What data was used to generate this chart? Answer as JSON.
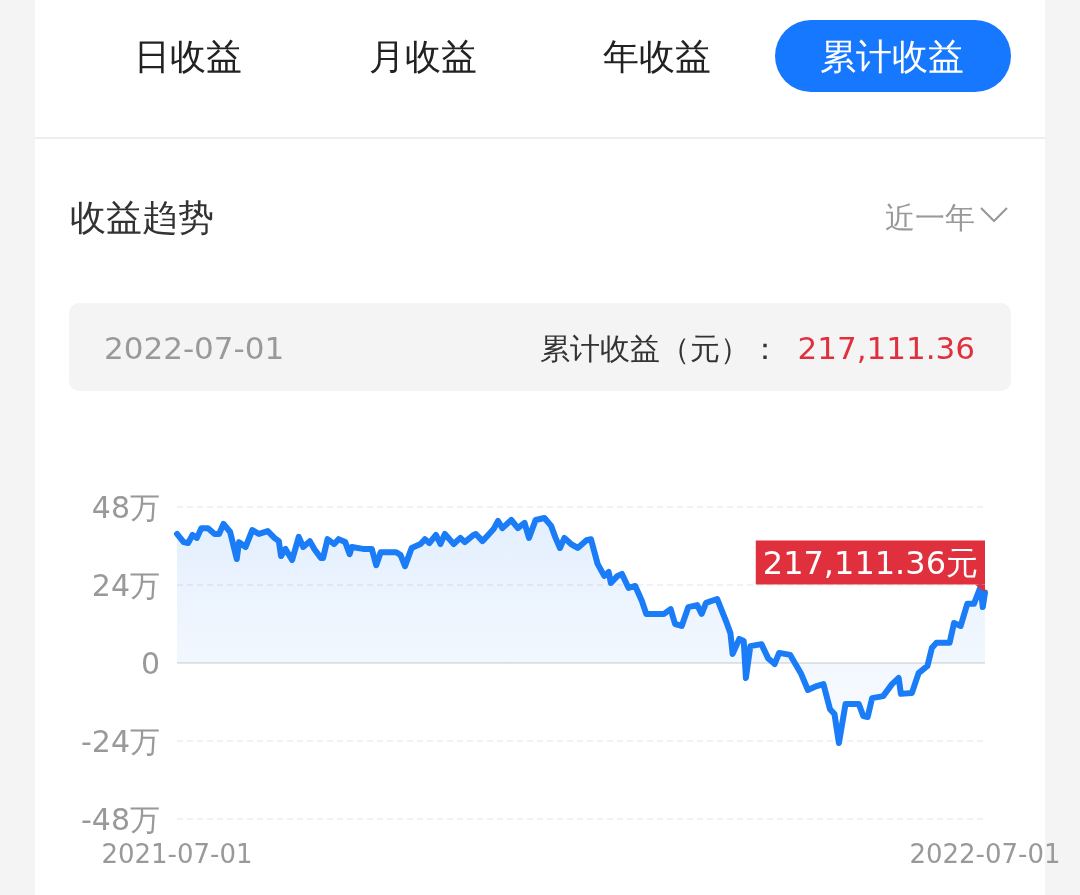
{
  "chart_data": {
    "type": "area",
    "title": "收益趋势",
    "annotations": [
      "日收益",
      "月收益",
      "年收益",
      "累计收益",
      "近一年",
      "2022-07-01",
      "累计收益（元）：",
      "217,111.36",
      {
        "text": "217,111.36元",
        "x": "2022-07-01",
        "y": 21.7
      }
    ],
    "x": [
      "2021-07-01",
      "2021-07-04",
      "2021-07-06",
      "2021-07-08",
      "2021-07-10",
      "2021-07-12",
      "2021-07-15",
      "2021-07-18",
      "2021-07-20",
      "2021-07-22",
      "2021-07-25",
      "2021-07-28",
      "2021-07-29",
      "2021-08-01",
      "2021-08-04",
      "2021-08-07",
      "2021-08-11",
      "2021-08-14",
      "2021-08-16",
      "2021-08-17",
      "2021-08-19",
      "2021-08-22",
      "2021-08-25",
      "2021-08-27",
      "2021-08-30",
      "2021-09-01",
      "2021-09-04",
      "2021-09-05",
      "2021-09-07",
      "2021-09-10",
      "2021-09-12",
      "2021-09-15",
      "2021-09-17",
      "2021-09-18",
      "2021-09-23",
      "2021-09-27",
      "2021-09-29",
      "2021-10-01",
      "2021-10-08",
      "2021-10-10",
      "2021-10-12",
      "2021-10-15",
      "2021-10-19",
      "2021-10-21",
      "2021-10-23",
      "2021-10-26",
      "2021-10-28",
      "2021-10-30",
      "2021-11-03",
      "2021-11-06",
      "2021-11-08",
      "2021-11-12",
      "2021-11-13",
      "2021-11-16",
      "2021-11-19",
      "2021-11-21",
      "2021-11-23",
      "2021-11-25",
      "2021-11-29",
      "2021-12-02",
      "2021-12-05",
      "2021-12-07",
      "2021-12-10",
      "2021-12-14",
      "2021-12-17",
      "2021-12-19",
      "2021-12-21",
      "2021-12-23",
      "2021-12-26",
      "2021-12-29",
      "2022-01-02",
      "2022-01-04",
      "2022-01-07",
      "2022-01-10",
      "2022-01-12",
      "2022-01-13",
      "2022-01-16",
      "2022-01-18",
      "2022-01-21",
      "2022-01-24",
      "2022-01-27",
      "2022-01-29",
      "2022-02-06",
      "2022-02-09",
      "2022-02-11",
      "2022-02-14",
      "2022-02-17",
      "2022-02-21",
      "2022-02-23",
      "2022-02-25",
      "2022-03-02",
      "2022-03-06",
      "2022-03-08",
      "2022-03-09",
      "2022-03-12",
      "2022-03-14",
      "2022-03-15",
      "2022-03-17",
      "2022-03-22",
      "2022-03-25",
      "2022-03-28",
      "2022-03-30",
      "2022-04-04",
      "2022-04-09",
      "2022-04-12",
      "2022-04-16",
      "2022-04-19",
      "2022-04-22",
      "2022-04-24",
      "2022-04-26",
      "2022-04-29",
      "2022-05-05",
      "2022-05-07",
      "2022-05-09",
      "2022-05-11",
      "2022-05-16",
      "2022-05-20",
      "2022-05-23",
      "2022-05-24",
      "2022-05-29",
      "2022-06-01",
      "2022-06-05",
      "2022-06-07",
      "2022-06-09",
      "2022-06-15",
      "2022-06-17",
      "2022-06-20",
      "2022-06-23",
      "2022-06-26",
      "2022-06-29",
      "2022-06-30",
      "2022-07-01"
    ],
    "series": [
      {
        "color": "#1a7cf6",
        "values": [
          39.7,
          37.2,
          36.9,
          39.4,
          38.5,
          41.5,
          41.5,
          39.7,
          39.7,
          42.8,
          40.3,
          32.0,
          37.2,
          35.7,
          40.9,
          39.7,
          40.6,
          38.5,
          37.5,
          32.9,
          35.1,
          31.7,
          38.8,
          35.7,
          37.5,
          35.1,
          32.3,
          32.3,
          38.1,
          36.6,
          38.1,
          37.2,
          33.5,
          35.7,
          35.1,
          35.1,
          30.1,
          34.1,
          34.1,
          33.2,
          29.8,
          35.4,
          36.6,
          38.1,
          36.9,
          39.4,
          36.6,
          39.7,
          36.6,
          38.5,
          37.2,
          39.4,
          39.7,
          37.5,
          39.7,
          41.2,
          43.7,
          41.5,
          44.0,
          41.5,
          43.1,
          38.5,
          44.0,
          44.6,
          42.2,
          38.5,
          35.4,
          38.5,
          36.6,
          35.4,
          37.8,
          38.1,
          30.5,
          26.8,
          28.0,
          24.6,
          26.8,
          27.4,
          23.1,
          23.7,
          19.1,
          15.1,
          15.1,
          16.6,
          12.0,
          11.4,
          17.2,
          17.8,
          15.1,
          18.5,
          19.7,
          12.9,
          9.2,
          2.8,
          7.4,
          6.8,
          -4.6,
          5.2,
          5.8,
          1.5,
          -0.3,
          3.1,
          2.5,
          -3.4,
          -8.3,
          -7.1,
          -6.5,
          -14.2,
          -15.7,
          -24.6,
          -12.6,
          -12.6,
          -16.3,
          -16.6,
          -10.8,
          -10.2,
          -6.5,
          -4.6,
          -9.5,
          -9.2,
          -3.1,
          -0.9,
          4.6,
          6.2,
          6.2,
          12.3,
          11.4,
          18.2,
          18.2,
          23.4,
          17.2,
          21.7
        ]
      }
    ],
    "xlim": [
      "2021-07-01",
      "2022-07-01"
    ],
    "xticks": [
      "2021-07-01",
      "2022-07-01"
    ],
    "ylim": [
      -48,
      48
    ],
    "yticks": [
      {
        "value": 48,
        "label": "48万"
      },
      {
        "value": 24,
        "label": "24万"
      },
      0,
      {
        "value": -24,
        "label": "-24万"
      },
      {
        "value": -48,
        "label": "-48万"
      }
    ],
    "grid": "y"
  }
}
